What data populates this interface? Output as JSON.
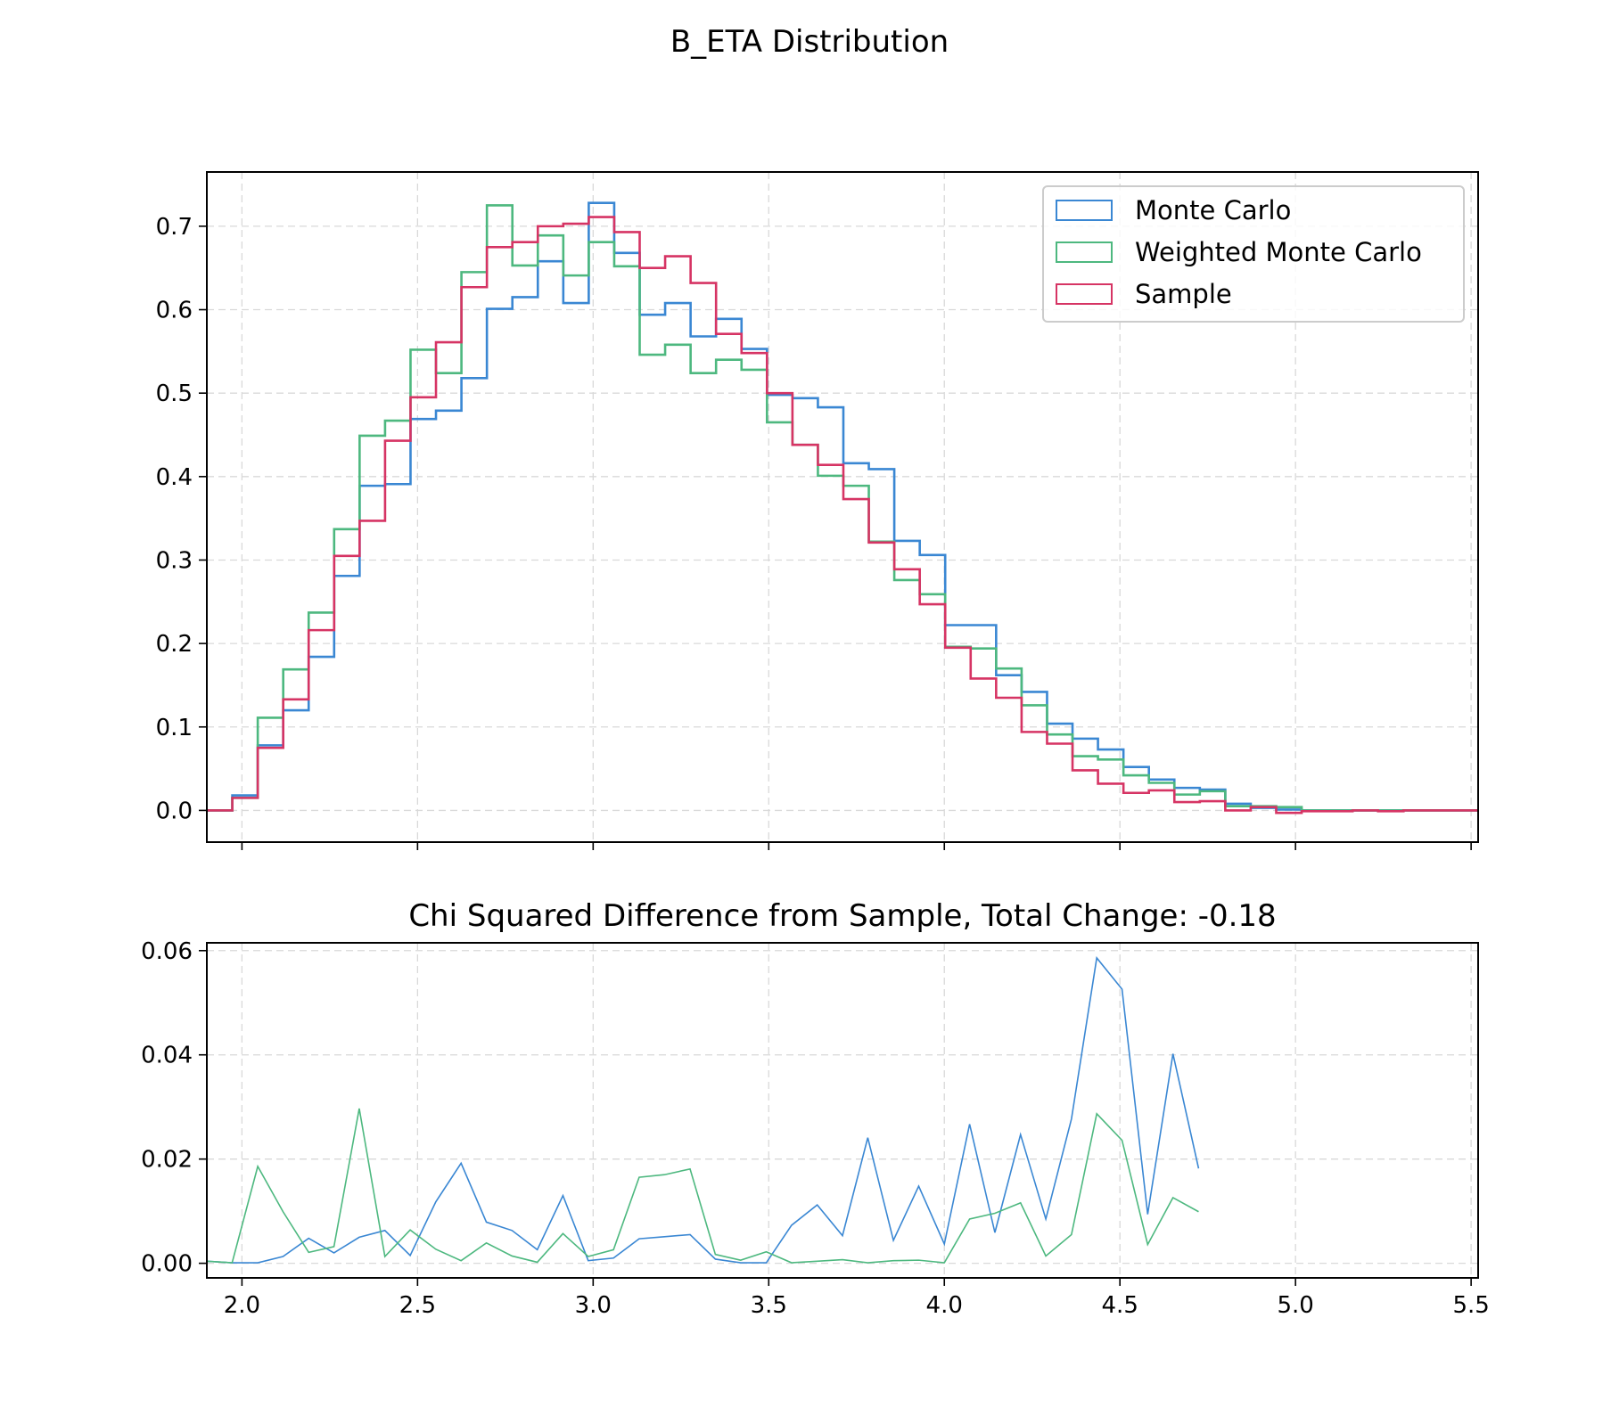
{
  "figure": {
    "suptitle": "B_ETA Distribution"
  },
  "chart_data": [
    {
      "type": "line",
      "subtype": "step histogram",
      "title": "",
      "xlim": [
        1.9,
        5.52
      ],
      "ylim": [
        -0.038,
        0.765
      ],
      "y_ticks": [
        "0.0",
        "0.1",
        "0.2",
        "0.3",
        "0.4",
        "0.5",
        "0.6",
        "0.7"
      ],
      "y_tick_values": [
        0.0,
        0.1,
        0.2,
        0.3,
        0.4,
        0.5,
        0.6,
        0.7
      ],
      "x_tick_values": [
        2.0,
        2.5,
        3.0,
        3.5,
        4.0,
        4.5,
        5.0,
        5.5
      ],
      "grid": true,
      "legend_position": "top-right",
      "bin_edges_start": 1.9,
      "bin_width": 0.0725,
      "series": [
        {
          "name": "Monte Carlo",
          "color": "#3a87d3",
          "values": [
            0.0,
            0.018,
            0.078,
            0.12,
            0.184,
            0.281,
            0.389,
            0.391,
            0.469,
            0.479,
            0.518,
            0.601,
            0.615,
            0.658,
            0.608,
            0.728,
            0.668,
            0.594,
            0.608,
            0.568,
            0.589,
            0.553,
            0.498,
            0.494,
            0.483,
            0.416,
            0.409,
            0.323,
            0.306,
            0.222,
            0.222,
            0.162,
            0.142,
            0.104,
            0.086,
            0.073,
            0.052,
            0.037,
            0.027,
            0.025,
            0.008,
            0.003,
            0.001,
            0.0,
            0.0,
            0.0,
            0.0,
            0.0,
            0.0,
            0.0
          ]
        },
        {
          "name": "Weighted Monte Carlo",
          "color": "#4db87f",
          "values": [
            0.0,
            0.015,
            0.111,
            0.169,
            0.237,
            0.337,
            0.449,
            0.467,
            0.552,
            0.524,
            0.645,
            0.725,
            0.653,
            0.689,
            0.641,
            0.681,
            0.652,
            0.546,
            0.558,
            0.524,
            0.54,
            0.528,
            0.465,
            0.438,
            0.401,
            0.389,
            0.322,
            0.276,
            0.259,
            0.196,
            0.194,
            0.17,
            0.126,
            0.091,
            0.065,
            0.061,
            0.042,
            0.033,
            0.019,
            0.023,
            0.005,
            0.005,
            0.004,
            0.0,
            0.0,
            0.0,
            0.0,
            0.0,
            0.0,
            0.0
          ]
        },
        {
          "name": "Sample",
          "color": "#d63464",
          "values": [
            0.0,
            0.015,
            0.075,
            0.133,
            0.216,
            0.305,
            0.347,
            0.443,
            0.495,
            0.561,
            0.627,
            0.675,
            0.681,
            0.7,
            0.703,
            0.711,
            0.693,
            0.65,
            0.664,
            0.632,
            0.571,
            0.548,
            0.5,
            0.438,
            0.414,
            0.373,
            0.321,
            0.289,
            0.247,
            0.195,
            0.158,
            0.135,
            0.094,
            0.08,
            0.048,
            0.032,
            0.021,
            0.024,
            0.01,
            0.011,
            0.0,
            0.004,
            -0.003,
            -0.001,
            -0.001,
            0.0,
            -0.001,
            0.0,
            0.0,
            0.0
          ]
        }
      ]
    },
    {
      "type": "line",
      "title": "Chi Squared Difference from Sample, Total Change: -0.18",
      "xlim": [
        1.9,
        5.52
      ],
      "ylim": [
        -0.0028,
        0.0615
      ],
      "y_ticks": [
        "0.00",
        "0.02",
        "0.04",
        "0.06"
      ],
      "y_tick_values": [
        0.0,
        0.02,
        0.04,
        0.06
      ],
      "x_ticks": [
        "2.0",
        "2.5",
        "3.0",
        "3.5",
        "4.0",
        "4.5",
        "5.0",
        "5.5"
      ],
      "x_tick_values": [
        2.0,
        2.5,
        3.0,
        3.5,
        4.0,
        4.5,
        5.0,
        5.5
      ],
      "grid": true,
      "x": [
        1.9,
        1.972,
        2.045,
        2.117,
        2.19,
        2.262,
        2.334,
        2.407,
        2.479,
        2.552,
        2.624,
        2.696,
        2.769,
        2.841,
        2.914,
        2.986,
        3.058,
        3.131,
        3.203,
        3.276,
        3.348,
        3.42,
        3.493,
        3.565,
        3.638,
        3.71,
        3.782,
        3.855,
        3.927,
        4.0,
        4.072,
        4.144,
        4.217,
        4.289,
        4.362,
        4.434,
        4.506,
        4.579,
        4.651,
        4.724
      ],
      "series": [
        {
          "name": "Monte Carlo",
          "color": "#3a87d3",
          "values": [
            0.0004,
            0.0001,
            0.0001,
            0.0013,
            0.0048,
            0.002,
            0.005,
            0.0063,
            0.0015,
            0.0118,
            0.0192,
            0.0079,
            0.0063,
            0.0026,
            0.013,
            0.0005,
            0.001,
            0.0047,
            0.0051,
            0.0055,
            0.0008,
            0.0001,
            0.0001,
            0.0073,
            0.0112,
            0.0053,
            0.0241,
            0.0044,
            0.0148,
            0.0037,
            0.0267,
            0.0059,
            0.0247,
            0.0085,
            0.0277,
            0.0586,
            0.0526,
            0.0094,
            0.0402,
            0.0182
          ]
        },
        {
          "name": "Weighted Monte Carlo",
          "color": "#4db87f",
          "values": [
            0.0004,
            0.0001,
            0.0186,
            0.0099,
            0.0021,
            0.0032,
            0.0297,
            0.0013,
            0.0064,
            0.0027,
            0.0005,
            0.0039,
            0.0014,
            0.0002,
            0.0057,
            0.0013,
            0.0026,
            0.0165,
            0.017,
            0.0181,
            0.0017,
            0.0006,
            0.0022,
            0.0001,
            0.0004,
            0.0007,
            0.0001,
            0.0005,
            0.0006,
            0.0001,
            0.0085,
            0.0096,
            0.0116,
            0.0014,
            0.0055,
            0.0287,
            0.0236,
            0.0036,
            0.0126,
            0.0099
          ]
        }
      ]
    }
  ]
}
